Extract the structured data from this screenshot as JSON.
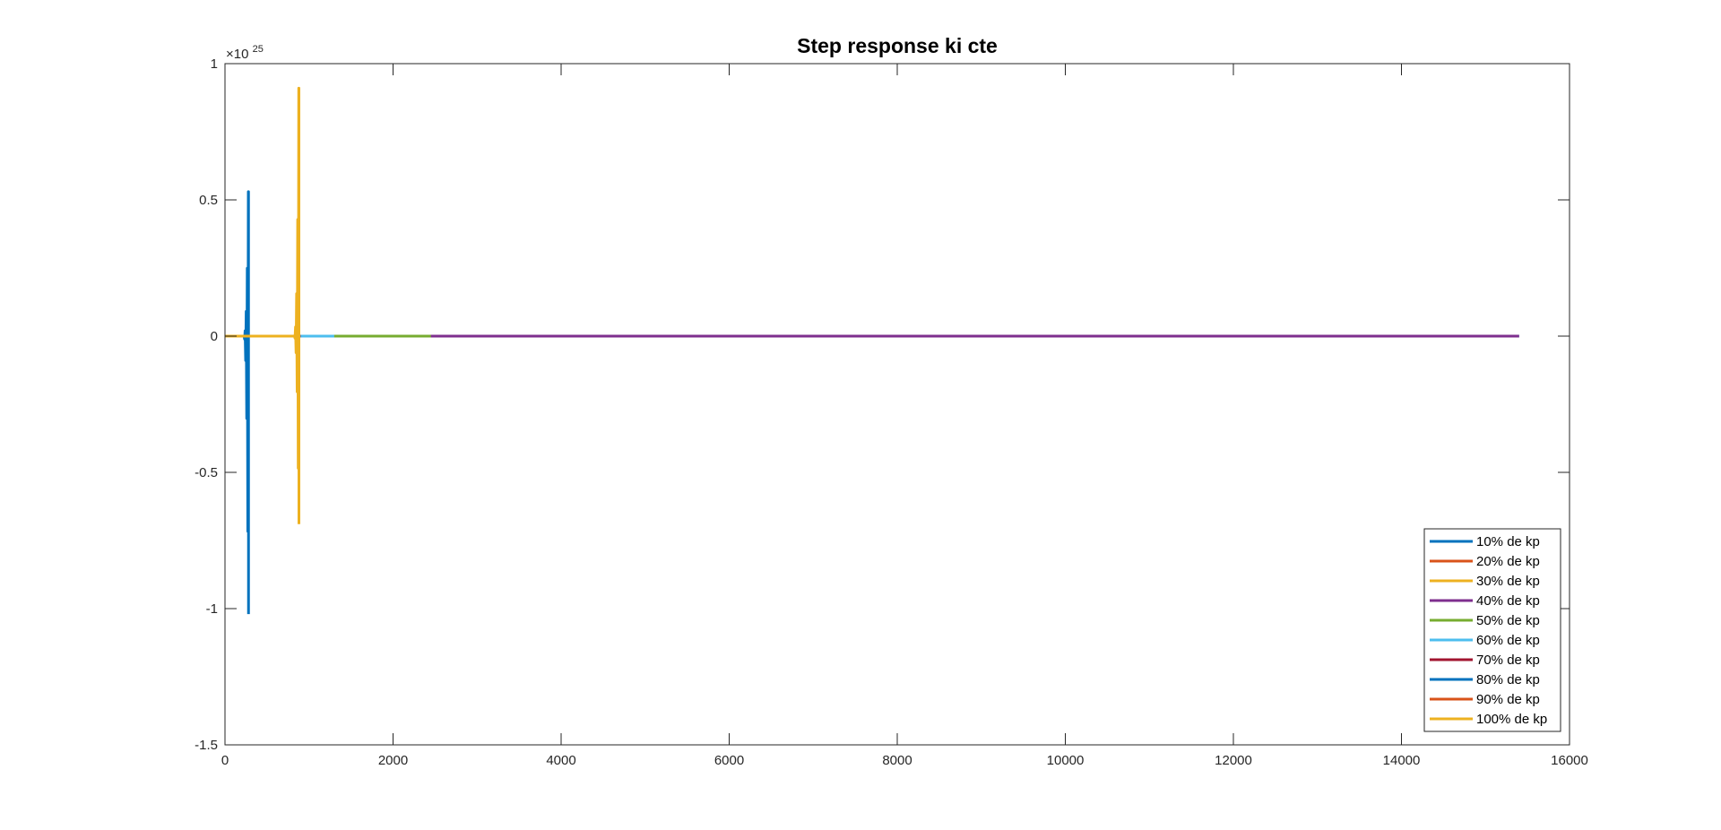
{
  "chart_data": {
    "type": "line",
    "title": "Step response ki cte",
    "xlabel": "",
    "ylabel": "",
    "xlim": [
      0,
      16000
    ],
    "ylim": [
      -1.5,
      1
    ],
    "y_exponent_base": "×10",
    "y_exponent": "25",
    "xticks": [
      0,
      2000,
      4000,
      6000,
      8000,
      10000,
      12000,
      14000,
      16000
    ],
    "xtick_labels": [
      "0",
      "2000",
      "4000",
      "6000",
      "8000",
      "10000",
      "12000",
      "14000",
      "16000"
    ],
    "yticks": [
      -1.5,
      -1,
      -0.5,
      0,
      0.5,
      1
    ],
    "ytick_labels": [
      "-1.5",
      "-1",
      "-0.5",
      "0",
      "0.5",
      "1"
    ],
    "grid": false,
    "legend_position": "bottom-right",
    "series": [
      {
        "name": "10% de kp",
        "color": "#0072BD",
        "x_end": 15400,
        "spike": null
      },
      {
        "name": "20% de kp",
        "color": "#D95319",
        "x_end": 1400,
        "spike": null
      },
      {
        "name": "30% de kp",
        "color": "#EDB120",
        "x_end": 1300,
        "spike": null
      },
      {
        "name": "40% de kp",
        "color": "#7E2F8E",
        "x_end": 15400,
        "spike": null
      },
      {
        "name": "50% de kp",
        "color": "#77AC30",
        "x_end": 2450,
        "spike": null
      },
      {
        "name": "60% de kp",
        "color": "#4DBEEE",
        "x_end": 1300,
        "spike": null
      },
      {
        "name": "70% de kp",
        "color": "#A2142F",
        "x_end": 900,
        "spike": null
      },
      {
        "name": "80% de kp",
        "color": "#0072BD",
        "x_end": 280,
        "spike": {
          "x": 280,
          "max": 0.53,
          "min": -1.02
        }
      },
      {
        "name": "90% de kp",
        "color": "#D95319",
        "x_end": 500,
        "spike": null
      },
      {
        "name": "100% de kp",
        "color": "#EDB120",
        "x_end": 880,
        "spike": {
          "x": 880,
          "max": 0.91,
          "min": -0.69
        }
      }
    ]
  }
}
